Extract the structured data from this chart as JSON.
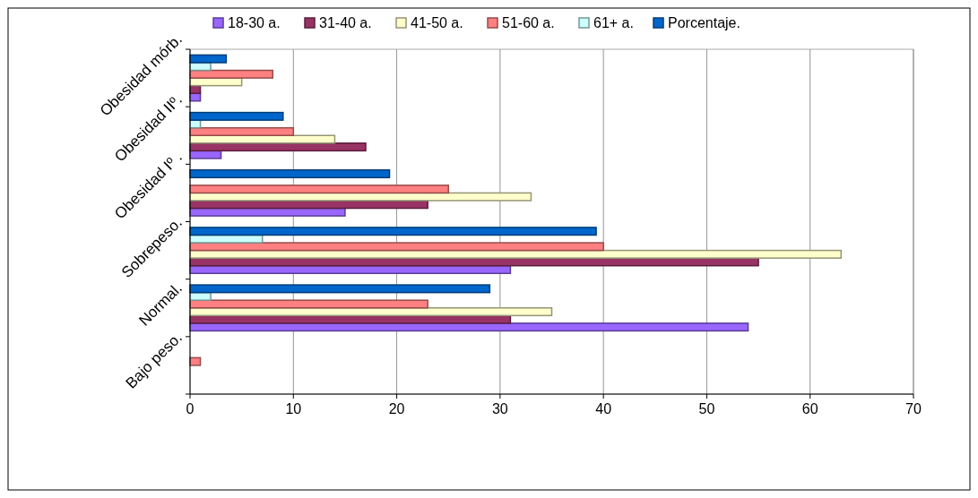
{
  "chart_data": {
    "type": "bar",
    "orientation": "horizontal",
    "categories": [
      "Obesidad mórb.",
      "Obesidad IIº.",
      "Obesidad Iº .",
      "Sobrepeso.",
      "Normal.",
      "Bajo peso."
    ],
    "series": [
      {
        "name": "18-30 a.",
        "color": "#9966ff",
        "values": [
          1,
          3,
          15,
          31,
          54,
          0
        ]
      },
      {
        "name": "31-40 a.",
        "color": "#993366",
        "values": [
          1,
          17,
          23,
          55,
          31,
          0
        ]
      },
      {
        "name": "41-50 a.",
        "color": "#ffffcc",
        "values": [
          5,
          14,
          33,
          63,
          35,
          0
        ]
      },
      {
        "name": "51-60 a.",
        "color": "#ff8080",
        "values": [
          8,
          10,
          25,
          40,
          23,
          1
        ]
      },
      {
        "name": "61+ a.",
        "color": "#ccffff",
        "values": [
          2,
          1,
          0,
          7,
          2,
          0
        ]
      },
      {
        "name": "Porcentaje.",
        "color": "#0066cc",
        "values": [
          3.5,
          9,
          19.3,
          39.3,
          29,
          0
        ]
      }
    ],
    "xlim": [
      0,
      70
    ],
    "xticks": [
      0,
      10,
      20,
      30,
      40,
      50,
      60,
      70
    ],
    "grid": "x",
    "legend": "top"
  }
}
